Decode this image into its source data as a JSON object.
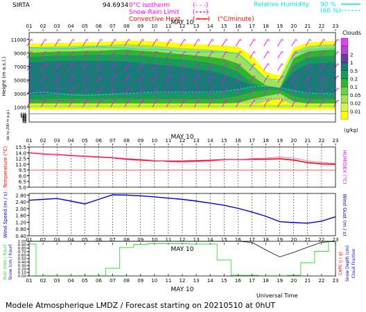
{
  "header": {
    "site": "SIRTA",
    "site_code": "94.6934",
    "legend_left": [
      {
        "label": "0°C isotherm",
        "style": "(- - -)",
        "color": "#ff00ff"
      },
      {
        "label": "Snow-Rain Limit",
        "style": "(- - -)",
        "color": "#ff00ff"
      },
      {
        "label": "Convective Heat.",
        "style": "(——)",
        "color": "#ff0000"
      }
    ],
    "convective_unit": "(°C/minute)",
    "legend_right": [
      {
        "label": "Relative Humidity",
        "value": "90 %",
        "color": "#00e5ee"
      },
      {
        "label": "",
        "value": "(60 %)",
        "color": "#00e5ee"
      }
    ]
  },
  "hours": [
    "01",
    "02",
    "03",
    "04",
    "05",
    "06",
    "07",
    "08",
    "09",
    "10",
    "11",
    "12",
    "13",
    "14",
    "15",
    "16",
    "17",
    "18",
    "19",
    "20",
    "21",
    "22",
    "23"
  ],
  "date_label": "MAY 10",
  "footer": {
    "xlabel": "Universal Time",
    "title": "Modele Atmospherique LMDZ / Forecast starting on 20210510 at 0hUT"
  },
  "chart_data": [
    {
      "type": "heatmap",
      "panel": "clouds",
      "ylabel": "Height (m a.s.l.)",
      "ylabel_lower": "Up to 200 m a.g.l.",
      "yticks_upper": [
        1000,
        3000,
        5000,
        7000,
        9000,
        11000
      ],
      "yticks_lower": [
        0,
        10,
        20,
        30,
        40,
        50,
        60,
        70,
        80,
        90,
        100,
        110,
        120,
        130,
        140,
        150
      ],
      "colorbar": {
        "title": "Clouds",
        "unit": "(g/kg)",
        "levels": [
          "0.01",
          "0.02",
          "0.05",
          "0.1",
          "0.2",
          "0.5",
          "1",
          "2"
        ],
        "colors": [
          "#ffff00",
          "#d7f05a",
          "#a4e05c",
          "#6fcd4a",
          "#32b432",
          "#1a9a5a",
          "#1c7a78",
          "#6a3d9a",
          "#b048d0",
          "#e040f0"
        ]
      },
      "zero_isotherm_m": [
        1900,
        1900,
        1950,
        2000,
        2000,
        2050,
        2100,
        2100,
        2150,
        2150,
        2200,
        2200,
        2200,
        2200,
        2200,
        2200,
        2200,
        2200,
        2150,
        2150,
        2150,
        2100,
        2100
      ]
    },
    {
      "type": "line",
      "panel": "temperature",
      "ylabel": "Temperature (°C)",
      "ylabel_right": "HUMIDEX (°C)",
      "yticks": [
        "5.0",
        "6.5",
        "8.0",
        "9.5",
        "11.0",
        "12.5",
        "14.0",
        "15.5"
      ],
      "ylim": [
        5.0,
        15.5
      ],
      "series": [
        {
          "color": "#ff0000",
          "values": [
            14.0,
            13.7,
            13.5,
            13.3,
            13.1,
            12.9,
            12.7,
            12.3,
            12.1,
            11.9,
            11.8,
            11.8,
            11.9,
            12.0,
            12.2,
            12.2,
            12.3,
            12.3,
            12.4,
            12.1,
            11.4,
            11.1,
            11.0
          ]
        },
        {
          "color": "#ff6bd0",
          "values": [
            14.1,
            13.8,
            13.6,
            13.4,
            13.2,
            13.0,
            12.8,
            12.5,
            12.3,
            12.0,
            11.6,
            11.5,
            11.6,
            11.8,
            12.1,
            12.2,
            12.5,
            12.6,
            12.9,
            12.6,
            11.9,
            11.5,
            11.2
          ]
        }
      ]
    },
    {
      "type": "line",
      "panel": "wind",
      "ylabel": "Wind Speed (m / s)",
      "ylabel_right": "Wind Gust (m / s)",
      "yticks": [
        "0.40",
        "0.80",
        "1.20",
        "1.60",
        "2.00",
        "2.40",
        "2.80"
      ],
      "ylim": [
        0.4,
        2.9
      ],
      "series": [
        {
          "color": "#0000cc",
          "values": [
            2.5,
            2.55,
            2.6,
            2.45,
            2.28,
            2.55,
            2.82,
            2.8,
            2.76,
            2.7,
            2.62,
            2.55,
            2.45,
            2.33,
            2.2,
            2.02,
            1.8,
            1.55,
            1.23,
            1.18,
            1.14,
            1.26,
            1.52
          ]
        }
      ]
    },
    {
      "type": "bar",
      "panel": "precipitation",
      "ylabel": "Rain (mm / hour)",
      "ylabel_2": "Snow (cm / hour)",
      "ylabel_right": "CAPE (J / g)",
      "ylabel_right_2": "Snow Depth (cm)",
      "ylabel_right_3": "Cloud Fraction",
      "yticks": [
        "0.00",
        "0.10",
        "0.20",
        "0.30",
        "0.40",
        "0.50",
        "0.60",
        "0.70",
        "0.80",
        "0.90",
        "1.00"
      ],
      "ylim": [
        0,
        1.0
      ],
      "series": [
        {
          "name": "Cloud Fraction",
          "color": "#33dd33",
          "values": [
            0.92,
            0.01,
            0.01,
            0.01,
            0.01,
            0.01,
            0.22,
            0.82,
            0.91,
            0.93,
            0.93,
            0.93,
            0.92,
            0.92,
            0.46,
            0.02,
            0.02,
            0.01,
            0.01,
            0.02,
            0.38,
            0.71,
            0.99
          ]
        },
        {
          "name": "CAPE",
          "color": "#000000",
          "type": "line",
          "values": [
            1.0,
            1.0,
            1.0,
            1.0,
            1.0,
            1.0,
            1.0,
            1.0,
            1.0,
            1.0,
            1.0,
            1.0,
            1.0,
            1.0,
            1.0,
            1.0,
            0.97,
            0.75,
            0.55,
            0.68,
            0.83,
            0.97,
            1.0
          ]
        }
      ]
    }
  ]
}
